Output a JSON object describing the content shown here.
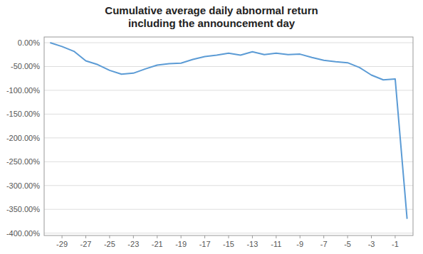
{
  "chart_data": {
    "type": "line",
    "title": "Cumulative average daily abnormal return\nincluding the announcement day",
    "x": [
      -30,
      -29,
      -28,
      -27,
      -26,
      -25,
      -24,
      -23,
      -22,
      -21,
      -20,
      -19,
      -18,
      -17,
      -16,
      -15,
      -14,
      -13,
      -12,
      -11,
      -10,
      -9,
      -8,
      -7,
      -6,
      -5,
      -4,
      -3,
      -2,
      -1,
      0
    ],
    "values": [
      0.0,
      -0.08,
      -0.18,
      -0.38,
      -0.46,
      -0.58,
      -0.66,
      -0.64,
      -0.55,
      -0.47,
      -0.44,
      -0.43,
      -0.35,
      -0.29,
      -0.26,
      -0.22,
      -0.26,
      -0.19,
      -0.25,
      -0.22,
      -0.25,
      -0.24,
      -0.31,
      -0.37,
      -0.4,
      -0.42,
      -0.52,
      -0.68,
      -0.78,
      -0.76,
      -3.7
    ],
    "color": "#5B9BD5",
    "xlim": [
      -30.5,
      0.5
    ],
    "ylim": [
      -4.05,
      0.12
    ],
    "xticks": [
      -29,
      -27,
      -25,
      -23,
      -21,
      -19,
      -17,
      -15,
      -13,
      -11,
      -9,
      -7,
      -5,
      -3,
      -1
    ],
    "yticks": [
      {
        "value": 0.0,
        "label": "0.00%"
      },
      {
        "value": -0.5,
        "label": "-50.00%"
      },
      {
        "value": -1.0,
        "label": "-100.00%"
      },
      {
        "value": -1.5,
        "label": "-150.00%"
      },
      {
        "value": -2.0,
        "label": "-200.00%"
      },
      {
        "value": -2.5,
        "label": "-250.00%"
      },
      {
        "value": -3.0,
        "label": "-300.00%"
      },
      {
        "value": -3.5,
        "label": "-350.00%"
      },
      {
        "value": -4.0,
        "label": "-400.00%"
      }
    ],
    "grid": true
  }
}
